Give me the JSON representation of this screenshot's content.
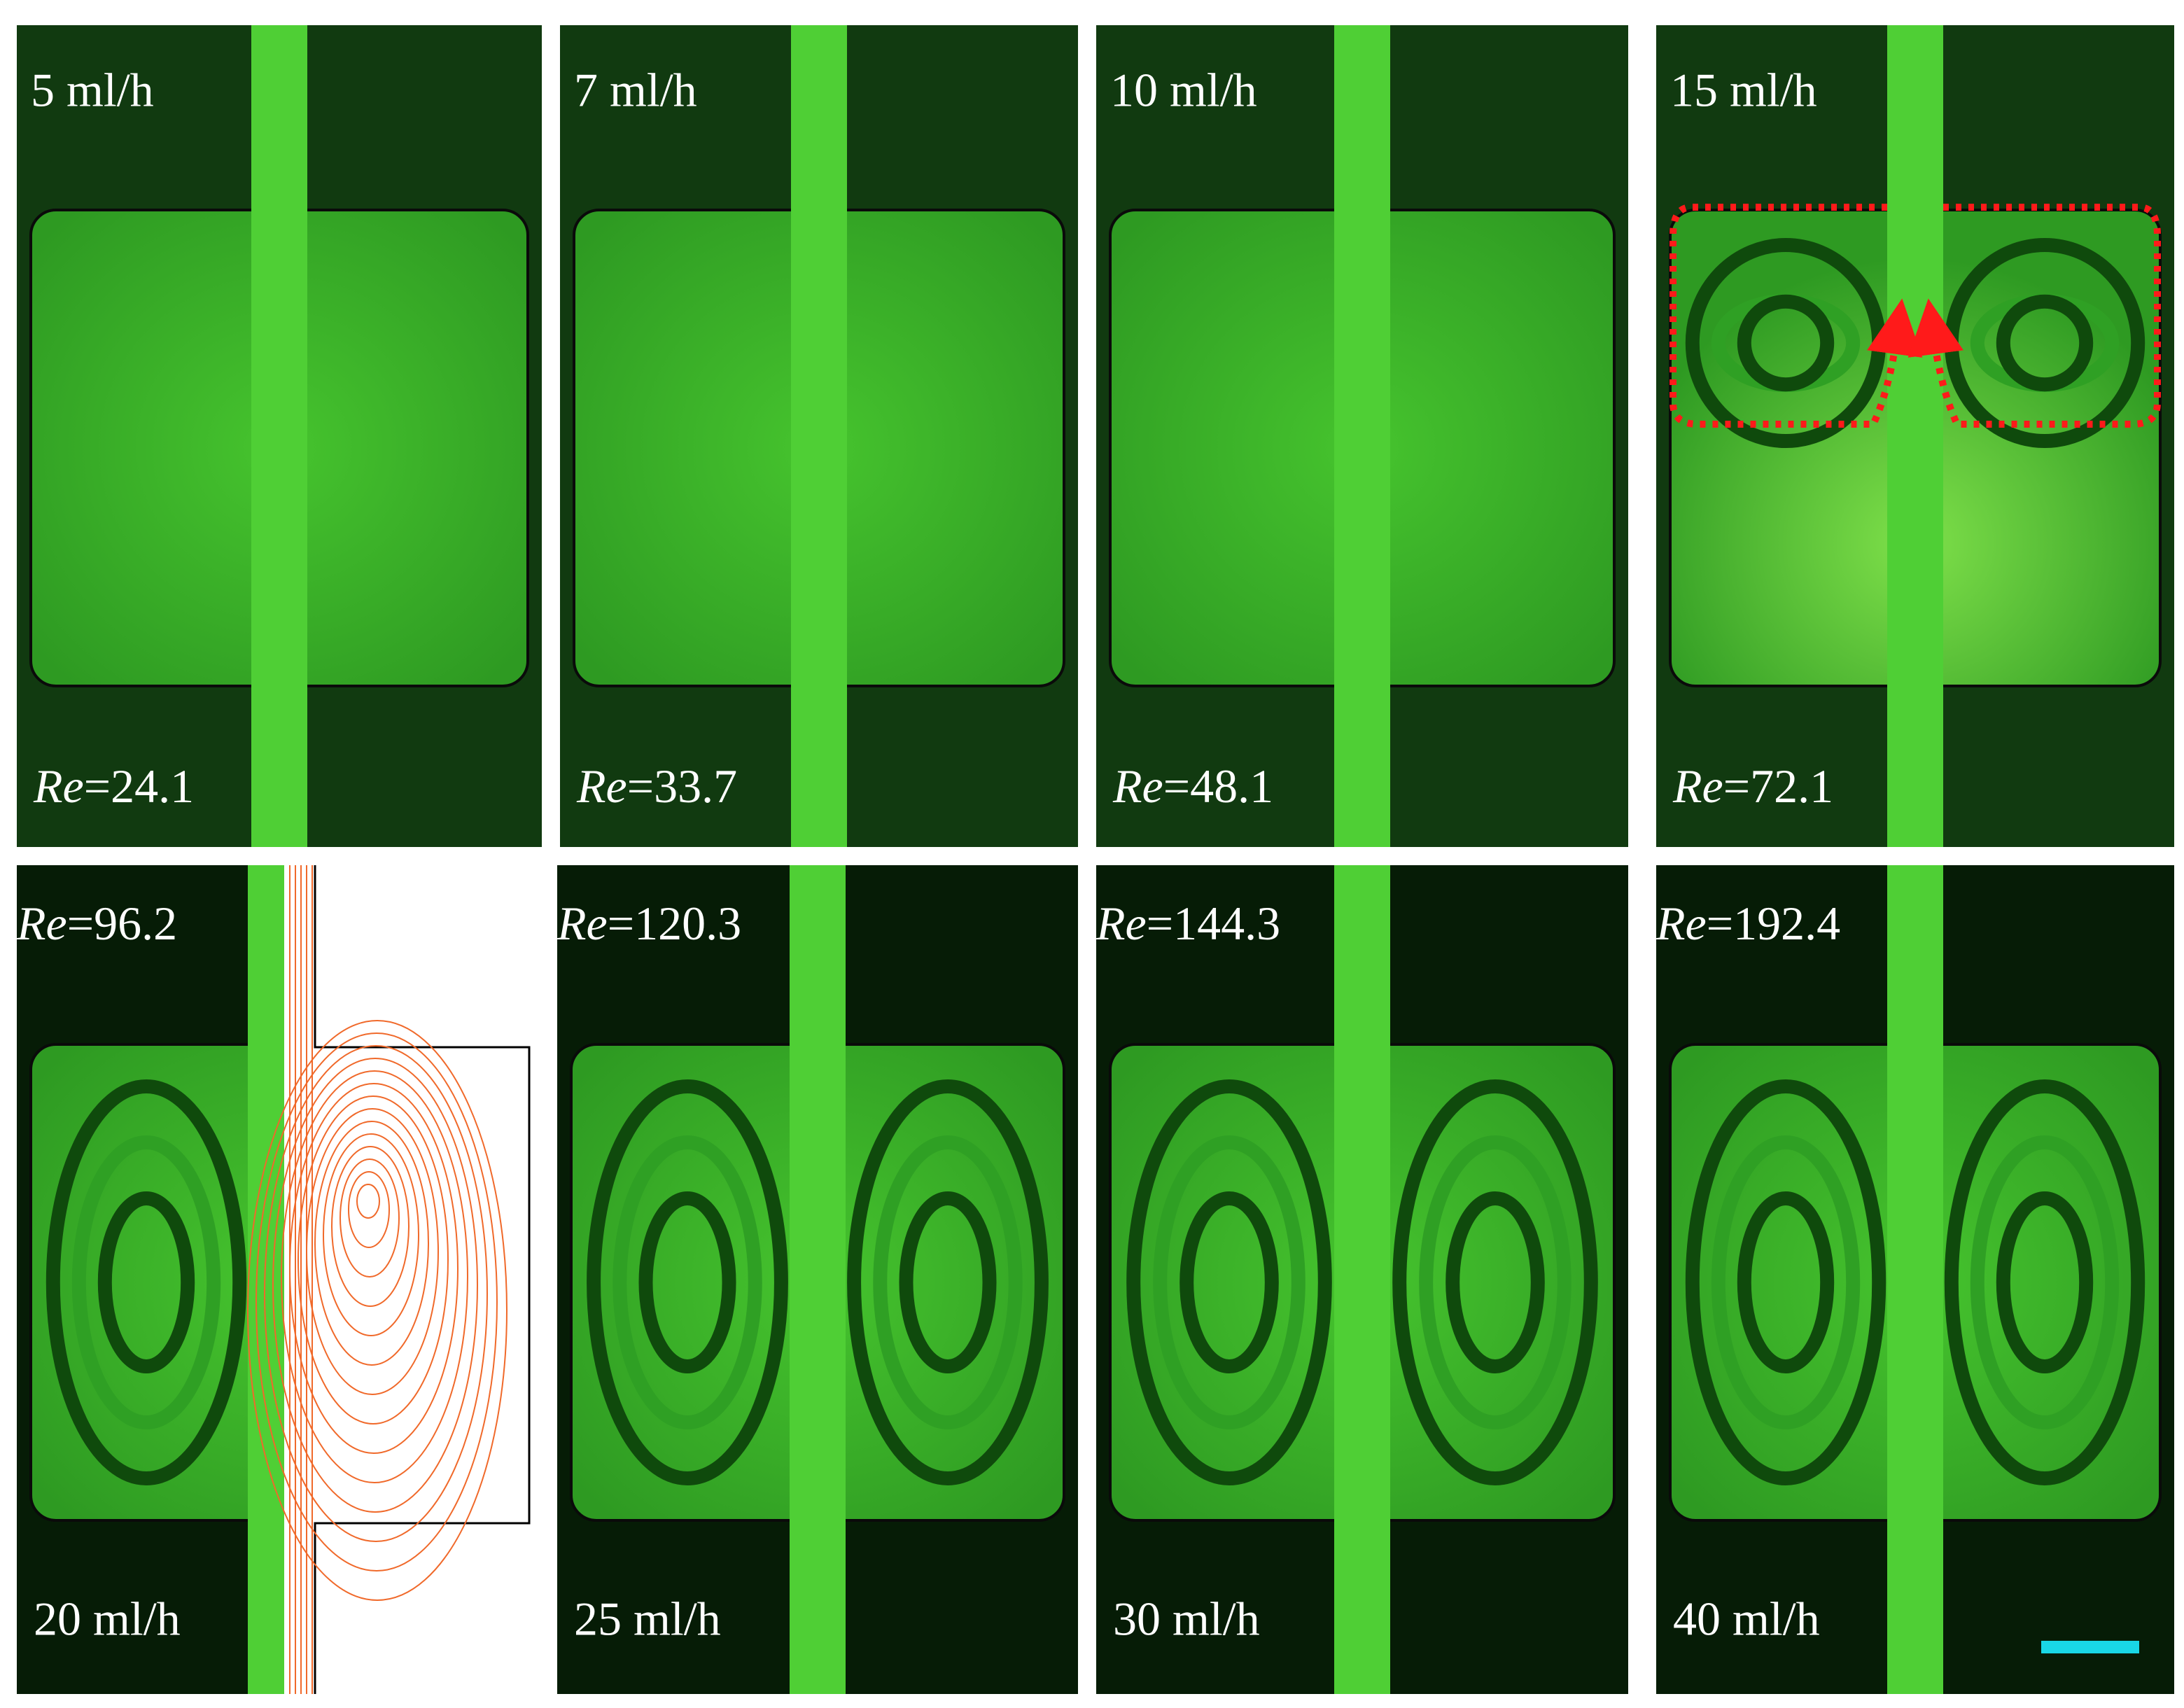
{
  "panels": [
    {
      "flow_rate": "5 ml/h",
      "re_symbol": "Re",
      "re_value": "=24.1"
    },
    {
      "flow_rate": "7 ml/h",
      "re_symbol": "Re",
      "re_value": "=33.7"
    },
    {
      "flow_rate": "10 ml/h",
      "re_symbol": "Re",
      "re_value": "=48.1"
    },
    {
      "flow_rate": "15 ml/h",
      "re_symbol": "Re",
      "re_value": "=72.1"
    },
    {
      "flow_rate": "20 ml/h",
      "re_symbol": "Re",
      "re_value": "=96.2"
    },
    {
      "flow_rate": "25 ml/h",
      "re_symbol": "Re",
      "re_value": "=120.3"
    },
    {
      "flow_rate": "30 ml/h",
      "re_symbol": "Re",
      "re_value": "=144.3"
    },
    {
      "flow_rate": "40 ml/h",
      "re_symbol": "Re",
      "re_value": "=192.4"
    }
  ]
}
